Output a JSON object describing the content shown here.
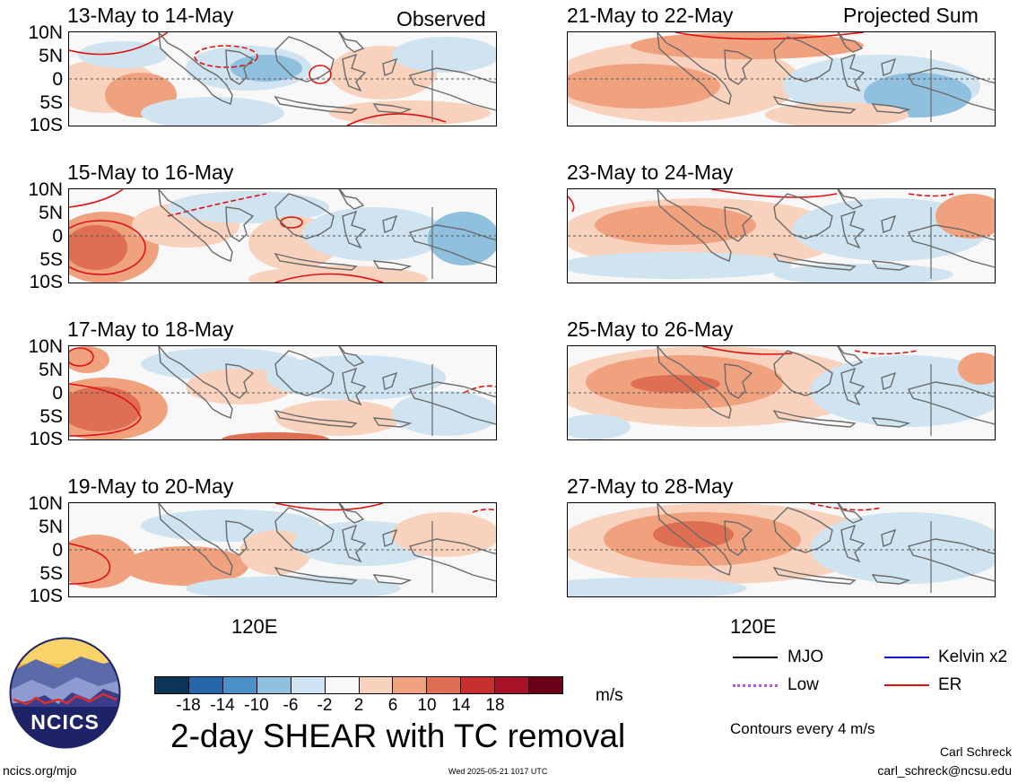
{
  "title": "2-day SHEAR with TC removal",
  "observed_label": "Observed",
  "projected_label": "Projected Sum",
  "latitude_labels": [
    "10N",
    "5N",
    "0",
    "5S",
    "10S"
  ],
  "longitude_label": "120E",
  "panels_left": [
    {
      "title": "13-May to 14-May"
    },
    {
      "title": "15-May to 16-May"
    },
    {
      "title": "17-May to 18-May"
    },
    {
      "title": "19-May to 20-May"
    }
  ],
  "panels_right": [
    {
      "title": "21-May to 22-May"
    },
    {
      "title": "23-May to 24-May"
    },
    {
      "title": "25-May to 26-May"
    },
    {
      "title": "27-May to 28-May"
    }
  ],
  "colorbar": {
    "ticks": [
      "-18",
      "-14",
      "-10",
      "-6",
      "-2",
      "2",
      "6",
      "10",
      "14",
      "18"
    ],
    "units": "m/s",
    "colors": [
      "#0c3358",
      "#2466a8",
      "#4b90c6",
      "#8fc0de",
      "#cfe3f0",
      "#f8f8f8",
      "#f9d2bd",
      "#f0a27f",
      "#de6f52",
      "#c8302f",
      "#a8132a",
      "#6b0219"
    ]
  },
  "legend": {
    "items": [
      {
        "label": "MJO",
        "color": "#000000",
        "style": "solid"
      },
      {
        "label": "Kelvin x2",
        "color": "#1010d0",
        "style": "solid"
      },
      {
        "label": "Low",
        "color": "#b45ad6",
        "style": "dotted"
      },
      {
        "label": "ER",
        "color": "#e01010",
        "style": "solid"
      }
    ],
    "contour_note": "Contours every 4 m/s"
  },
  "logo_text": "NCICS",
  "footer": {
    "url": "ncics.org/mjo",
    "timestamp": "Wed 2025-05-21 1017 UTC",
    "author": "Carl Schreck",
    "email": "carl_schreck@ncsu.edu"
  },
  "icons": [
    "ncics-logo-icon"
  ]
}
